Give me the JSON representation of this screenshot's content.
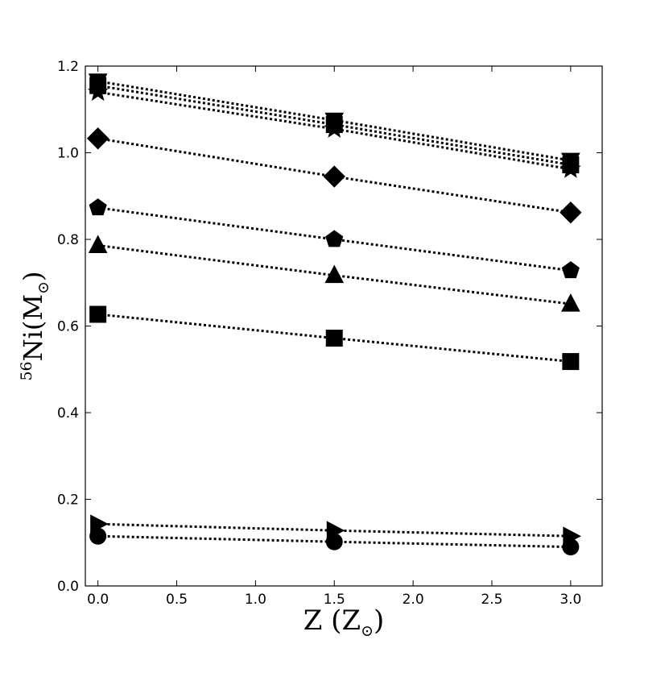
{
  "chart_data": {
    "type": "scatter",
    "title": "",
    "xlabel": "Z (Z⊙)",
    "ylabel": "56Ni(M⊙)",
    "xlabel_parts": {
      "main": "Z ",
      "open": "(",
      "var": "Z",
      "sub": "⊙",
      "close": ")"
    },
    "ylabel_parts": {
      "sup": "56",
      "main": "Ni(M",
      "sub": "⊙",
      "close": ")"
    },
    "xlim": [
      -0.08,
      3.2
    ],
    "ylim": [
      0.0,
      1.2
    ],
    "xticks": [
      0.0,
      0.5,
      1.0,
      1.5,
      2.0,
      2.5,
      3.0
    ],
    "xtick_labels": [
      "0.0",
      "0.5",
      "1.0",
      "1.5",
      "2.0",
      "2.5",
      "3.0"
    ],
    "yticks": [
      0.0,
      0.2,
      0.4,
      0.6,
      0.8,
      1.0,
      1.2
    ],
    "ytick_labels": [
      "0.0",
      "0.2",
      "0.4",
      "0.6",
      "0.8",
      "1.0",
      "1.2"
    ],
    "grid": false,
    "line_style": "dotted",
    "marker_color": "#000000",
    "x": [
      0.0,
      1.5,
      3.0
    ],
    "series": [
      {
        "marker": "triangle-down",
        "values": [
          1.165,
          1.075,
          0.982
        ]
      },
      {
        "marker": "square",
        "values": [
          1.155,
          1.065,
          0.972
        ]
      },
      {
        "marker": "star",
        "values": [
          1.14,
          1.055,
          0.962
        ]
      },
      {
        "marker": "diamond",
        "values": [
          1.033,
          0.945,
          0.862
        ]
      },
      {
        "marker": "pentagon",
        "values": [
          0.873,
          0.8,
          0.728
        ]
      },
      {
        "marker": "triangle-up",
        "values": [
          0.786,
          0.717,
          0.651
        ]
      },
      {
        "marker": "square",
        "values": [
          0.627,
          0.572,
          0.518
        ]
      },
      {
        "marker": "triangle-right",
        "values": [
          0.143,
          0.128,
          0.115
        ]
      },
      {
        "marker": "circle",
        "values": [
          0.115,
          0.102,
          0.09
        ]
      }
    ]
  }
}
